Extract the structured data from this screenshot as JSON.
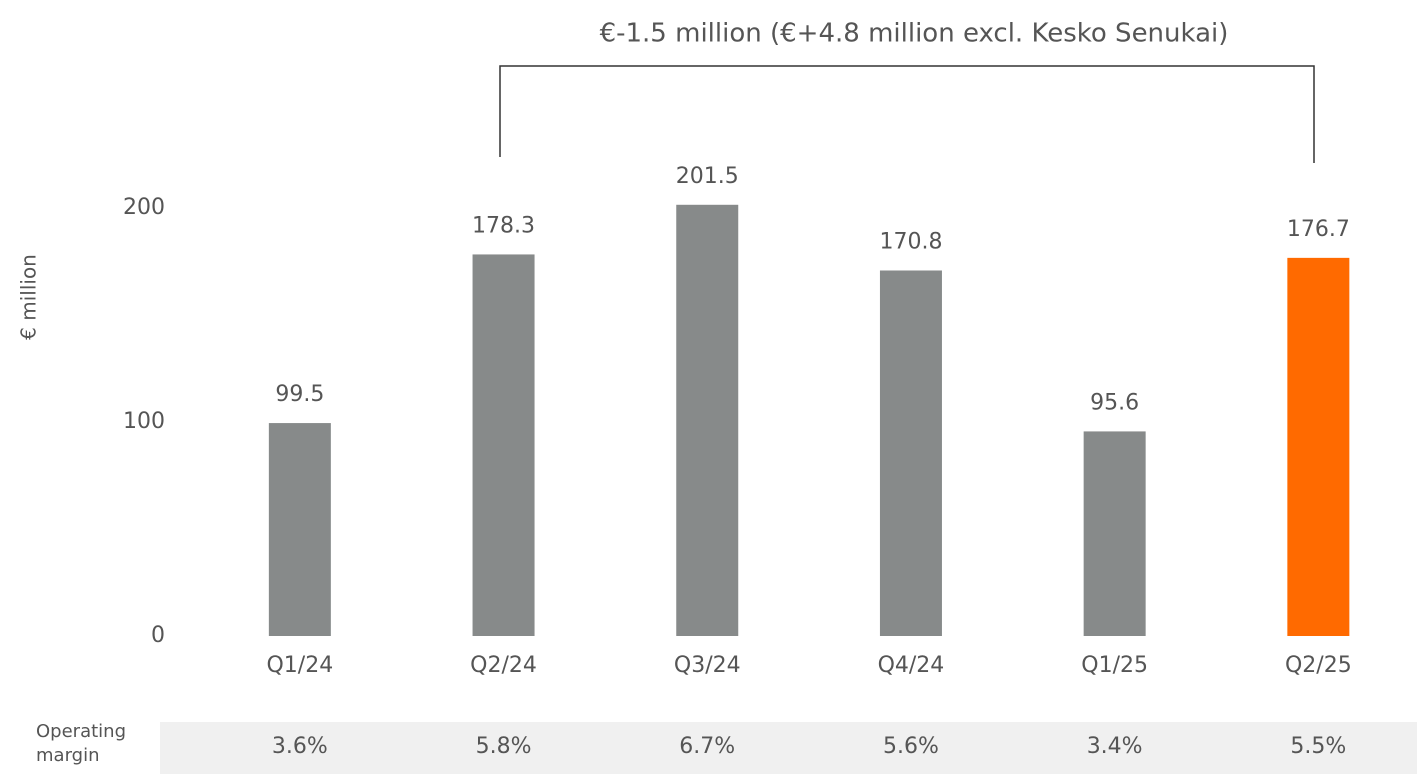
{
  "chart_data": {
    "type": "bar",
    "annotation": "€-1.5 million (€+4.8 million excl. Kesko Senukai)",
    "y_label": "€ million",
    "categories": [
      "Q1/24",
      "Q2/24",
      "Q3/24",
      "Q4/24",
      "Q1/25",
      "Q2/25"
    ],
    "values": [
      99.5,
      178.3,
      201.5,
      170.8,
      95.6,
      176.7
    ],
    "colors": [
      "#878a8a",
      "#878a8a",
      "#878a8a",
      "#878a8a",
      "#878a8a",
      "#ff6a00"
    ],
    "ylim": [
      0,
      200
    ],
    "yticks": [
      0,
      100,
      200
    ],
    "grid": false,
    "margin_row": {
      "label": "Operating margin",
      "values": [
        "3.6%",
        "5.8%",
        "6.7%",
        "5.6%",
        "3.4%",
        "5.5%"
      ]
    }
  }
}
